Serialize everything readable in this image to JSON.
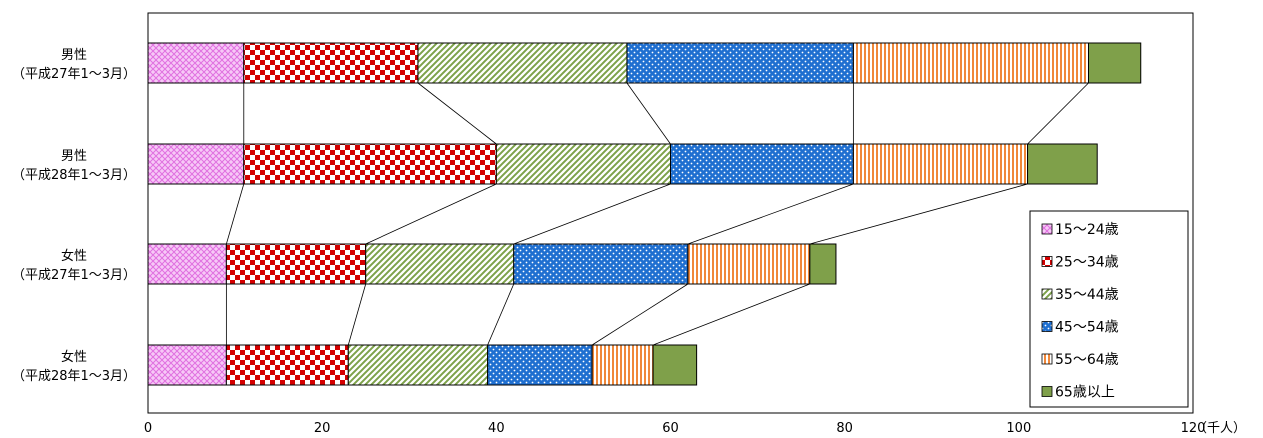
{
  "chart_data": {
    "type": "bar",
    "orientation": "horizontal",
    "stacked": true,
    "categories": [
      [
        "男性",
        "（平成27年1～3月）"
      ],
      [
        "男性",
        "（平成28年1～3月）"
      ],
      [
        "女性",
        "（平成27年1～3月）"
      ],
      [
        "女性",
        "（平成28年1～3月）"
      ]
    ],
    "series": [
      {
        "name": "15～24歳",
        "values": [
          11,
          11,
          9,
          9
        ],
        "color": "#f08cf0",
        "pattern": "diamond"
      },
      {
        "name": "25～34歳",
        "values": [
          20,
          29,
          16,
          14
        ],
        "color": "#d40000",
        "pattern": "checker"
      },
      {
        "name": "35～44歳",
        "values": [
          24,
          20,
          17,
          16
        ],
        "color": "#7da24a",
        "pattern": "diagonal"
      },
      {
        "name": "45～54歳",
        "values": [
          26,
          21,
          20,
          12
        ],
        "color": "#1f6fd0",
        "pattern": "dots"
      },
      {
        "name": "55～64歳",
        "values": [
          27,
          20,
          14,
          7
        ],
        "color": "#f0883a",
        "pattern": "vertical"
      },
      {
        "name": "65歳以上",
        "values": [
          6,
          8,
          3,
          5
        ],
        "color": "#7fa04a",
        "pattern": "solid"
      }
    ],
    "xlim": [
      0,
      120
    ],
    "x_ticks": [
      0,
      20,
      40,
      60,
      80,
      100,
      120
    ],
    "x_unit": "（千人）",
    "legend_position": "right",
    "series_lines": true
  }
}
